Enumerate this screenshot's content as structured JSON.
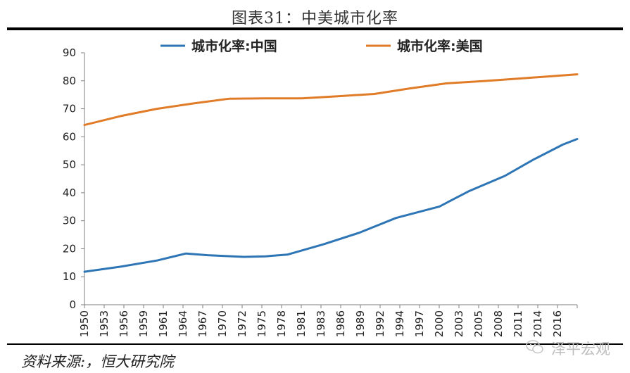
{
  "title": "图表31：中美城市化率",
  "source": "资料来源:，恒大研究院",
  "watermark": "泽平宏观",
  "colors": {
    "china": "#2e75b6",
    "usa": "#e07b28",
    "axis": "#7f7f7f"
  },
  "chart_data": {
    "type": "line",
    "title": "图表31：中美城市化率",
    "xlabel": "",
    "ylabel": "",
    "ylim": [
      0,
      90
    ],
    "yticks": [
      0,
      10,
      20,
      30,
      40,
      50,
      60,
      70,
      80,
      90
    ],
    "grid": false,
    "legend_position": "top",
    "categories": [
      "1950",
      "1953",
      "1956",
      "1959",
      "1961",
      "1964",
      "1967",
      "1970",
      "1972",
      "1975",
      "1978",
      "1981",
      "1983",
      "1986",
      "1989",
      "1992",
      "1994",
      "1997",
      "2000",
      "2003",
      "2005",
      "2008",
      "2011",
      "2014",
      "2016"
    ],
    "series": [
      {
        "name": "城市化率:中国",
        "color": "#2e75b6",
        "points": [
          [
            1950,
            11.8
          ],
          [
            1955,
            13.6
          ],
          [
            1960,
            15.8
          ],
          [
            1964,
            18.3
          ],
          [
            1967,
            17.7
          ],
          [
            1972,
            17.1
          ],
          [
            1975,
            17.3
          ],
          [
            1978,
            17.9
          ],
          [
            1983,
            21.6
          ],
          [
            1988,
            25.8
          ],
          [
            1993,
            31.0
          ],
          [
            1999,
            35.1
          ],
          [
            2003,
            40.5
          ],
          [
            2008,
            46.0
          ],
          [
            2012,
            51.9
          ],
          [
            2016,
            57.2
          ],
          [
            2018,
            59.2
          ]
        ]
      },
      {
        "name": "城市化率:美国",
        "color": "#e07b28",
        "points": [
          [
            1950,
            64.2
          ],
          [
            1955,
            67.4
          ],
          [
            1960,
            70.0
          ],
          [
            1965,
            71.9
          ],
          [
            1970,
            73.6
          ],
          [
            1975,
            73.7
          ],
          [
            1980,
            73.7
          ],
          [
            1985,
            74.5
          ],
          [
            1990,
            75.3
          ],
          [
            1995,
            77.3
          ],
          [
            2000,
            79.1
          ],
          [
            2005,
            79.9
          ],
          [
            2010,
            80.8
          ],
          [
            2018,
            82.3
          ]
        ]
      }
    ]
  }
}
